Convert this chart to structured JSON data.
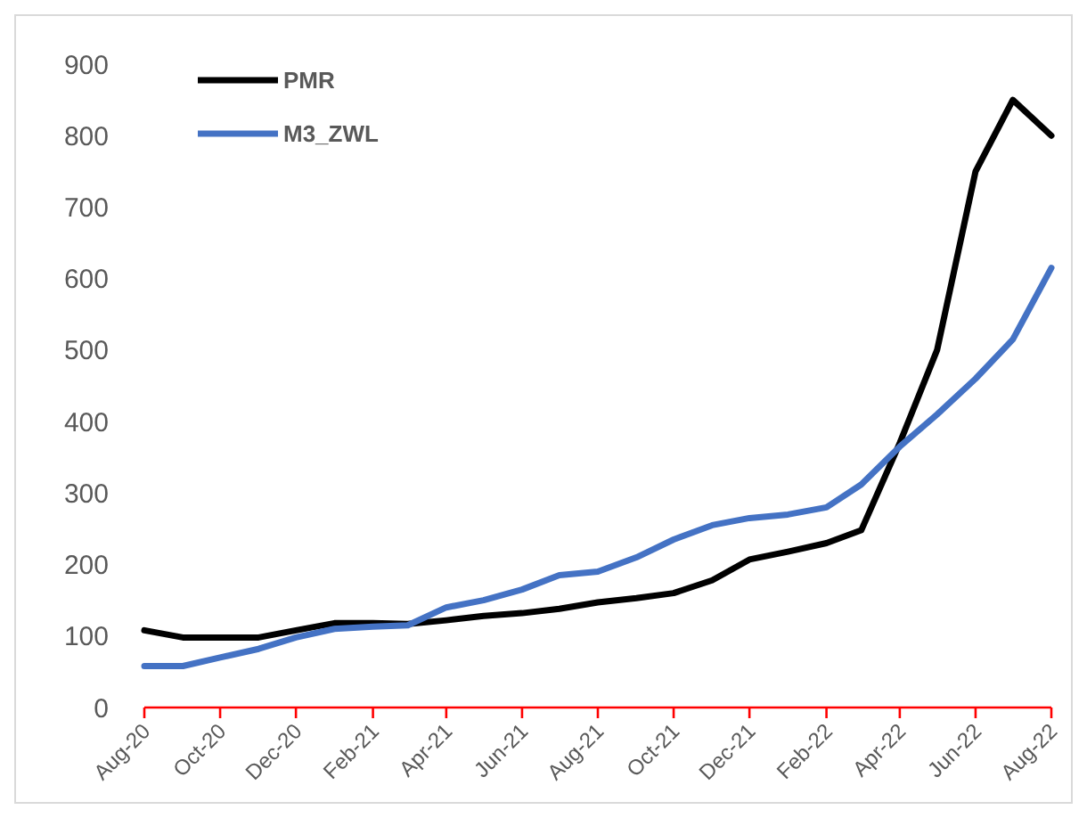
{
  "chart_data": {
    "type": "line",
    "x": [
      "2020-08",
      "2020-09",
      "2020-10",
      "2020-11",
      "2020-12",
      "2021-01",
      "2021-02",
      "2021-03",
      "2021-04",
      "2021-05",
      "2021-06",
      "2021-07",
      "2021-08",
      "2021-09",
      "2021-10",
      "2021-11",
      "2021-12",
      "2022-01",
      "2022-02",
      "2022-03",
      "2022-04",
      "2022-05",
      "2022-06",
      "2022-07",
      "2022-08"
    ],
    "series": [
      {
        "name": "PMR",
        "color": "#000000",
        "values": [
          108,
          98,
          98,
          98,
          108,
          118,
          118,
          117,
          122,
          128,
          132,
          138,
          147,
          153,
          160,
          178,
          207,
          218,
          230,
          248,
          370,
          500,
          750,
          850,
          800
        ]
      },
      {
        "name": "M3_ZWL",
        "color": "#4472c4",
        "values": [
          58,
          58,
          70,
          82,
          98,
          110,
          113,
          115,
          140,
          150,
          165,
          185,
          190,
          210,
          235,
          255,
          265,
          270,
          280,
          312,
          365,
          410,
          460,
          515,
          615
        ]
      }
    ],
    "xlim": [
      "2020-08",
      "2022-08"
    ],
    "xticks": [
      {
        "value": "2020-08",
        "label": "Aug-20"
      },
      {
        "value": "2020-10",
        "label": "Oct-20"
      },
      {
        "value": "2020-12",
        "label": "Dec-20"
      },
      {
        "value": "2021-02",
        "label": "Feb-21"
      },
      {
        "value": "2021-04",
        "label": "Apr-21"
      },
      {
        "value": "2021-06",
        "label": "Jun-21"
      },
      {
        "value": "2021-08",
        "label": "Aug-21"
      },
      {
        "value": "2021-10",
        "label": "Oct-21"
      },
      {
        "value": "2021-12",
        "label": "Dec-21"
      },
      {
        "value": "2022-02",
        "label": "Feb-22"
      },
      {
        "value": "2022-04",
        "label": "Apr-22"
      },
      {
        "value": "2022-06",
        "label": "Jun-22"
      },
      {
        "value": "2022-08",
        "label": "Aug-22"
      }
    ],
    "ylim": [
      0,
      900
    ],
    "yticks": [
      0,
      100,
      200,
      300,
      400,
      500,
      600,
      700,
      800,
      900
    ],
    "grid": false,
    "legend": "top left",
    "marker": "none",
    "line_style": "solid"
  }
}
